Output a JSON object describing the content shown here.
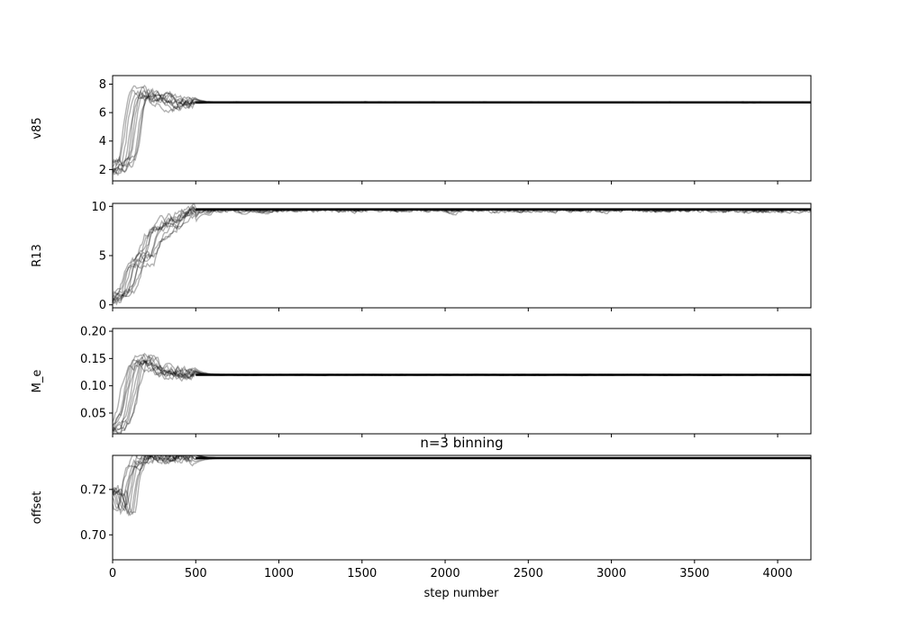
{
  "chart_data": {
    "type": "line",
    "layout": "4 vertically stacked subplots sharing x axis",
    "xlabel": "step number",
    "xlim": [
      0,
      4200
    ],
    "xticks": [
      0,
      500,
      1000,
      1500,
      2000,
      2500,
      3000,
      3500,
      4000
    ],
    "xtick_labels": [
      "0",
      "500",
      "1000",
      "1500",
      "2000",
      "2500",
      "3000",
      "3500",
      "4000"
    ],
    "grid": false,
    "line_color": "#000000",
    "line_alpha": 0.3,
    "subplots": [
      {
        "ylabel": "v85",
        "title": "",
        "ylim": [
          1.2,
          8.6
        ],
        "yticks": [
          2,
          4,
          6,
          8
        ],
        "ytick_labels": [
          "2",
          "4",
          "6",
          "8"
        ],
        "trace": [
          [
            0,
            1.8
          ],
          [
            20,
            2.0
          ],
          [
            40,
            2.4
          ],
          [
            60,
            2.6
          ],
          [
            80,
            2.5
          ],
          [
            100,
            3.5
          ],
          [
            120,
            5.5
          ],
          [
            140,
            6.8
          ],
          [
            160,
            7.4
          ],
          [
            180,
            7.5
          ],
          [
            200,
            7.4
          ],
          [
            220,
            7.3
          ],
          [
            250,
            7.0
          ],
          [
            300,
            6.95
          ],
          [
            350,
            6.85
          ],
          [
            400,
            6.8
          ],
          [
            450,
            6.75
          ],
          [
            500,
            6.72
          ],
          [
            4200,
            6.72
          ]
        ],
        "final": 6.72
      },
      {
        "ylabel": "R13",
        "title": "",
        "ylim": [
          -0.3,
          10.3
        ],
        "yticks": [
          0,
          5,
          10
        ],
        "ytick_labels": [
          "0",
          "5",
          "10"
        ],
        "trace": [
          [
            0,
            0.7
          ],
          [
            30,
            1.0
          ],
          [
            60,
            1.3
          ],
          [
            80,
            1.6
          ],
          [
            100,
            2.6
          ],
          [
            120,
            3.8
          ],
          [
            140,
            4.5
          ],
          [
            180,
            4.6
          ],
          [
            200,
            4.8
          ],
          [
            220,
            5.8
          ],
          [
            240,
            6.8
          ],
          [
            260,
            7.3
          ],
          [
            300,
            7.8
          ],
          [
            340,
            8.2
          ],
          [
            380,
            8.6
          ],
          [
            420,
            9.2
          ],
          [
            460,
            9.6
          ],
          [
            500,
            9.7
          ],
          [
            4200,
            9.7
          ]
        ],
        "final": 9.7
      },
      {
        "ylabel": "M_e",
        "title": "",
        "ylim": [
          0.012,
          0.205
        ],
        "yticks": [
          0.05,
          0.1,
          0.15,
          0.2
        ],
        "ytick_labels": [
          "0.05",
          "0.10",
          "0.15",
          "0.20"
        ],
        "trace": [
          [
            0,
            0.02
          ],
          [
            30,
            0.025
          ],
          [
            60,
            0.04
          ],
          [
            80,
            0.06
          ],
          [
            100,
            0.09
          ],
          [
            120,
            0.12
          ],
          [
            140,
            0.145
          ],
          [
            160,
            0.15
          ],
          [
            180,
            0.148
          ],
          [
            200,
            0.145
          ],
          [
            220,
            0.14
          ],
          [
            250,
            0.132
          ],
          [
            300,
            0.127
          ],
          [
            350,
            0.124
          ],
          [
            400,
            0.122
          ],
          [
            450,
            0.121
          ],
          [
            500,
            0.12
          ],
          [
            4200,
            0.12
          ]
        ],
        "final": 0.12
      },
      {
        "ylabel": "offset",
        "title": "n=3 binning",
        "ylim": [
          0.689,
          0.735
        ],
        "yticks": [
          0.7,
          0.72
        ],
        "ytick_labels": [
          "0.70",
          "0.72"
        ],
        "trace": [
          [
            0,
            0.718
          ],
          [
            20,
            0.72
          ],
          [
            40,
            0.714
          ],
          [
            60,
            0.71
          ],
          [
            80,
            0.712
          ],
          [
            100,
            0.722
          ],
          [
            120,
            0.728
          ],
          [
            140,
            0.732
          ],
          [
            160,
            0.733
          ],
          [
            180,
            0.7335
          ],
          [
            200,
            0.7338
          ],
          [
            4200,
            0.7338
          ]
        ],
        "final": 0.7338
      }
    ]
  }
}
